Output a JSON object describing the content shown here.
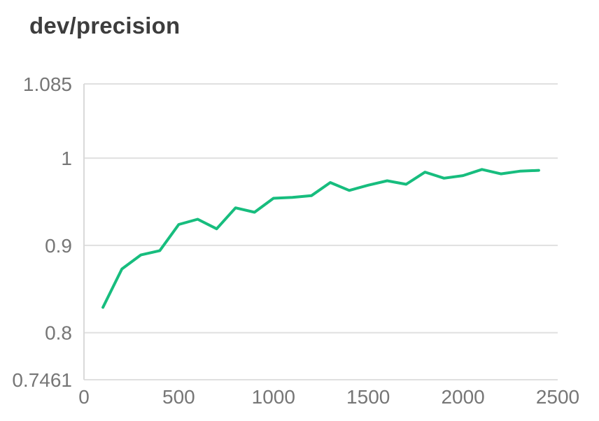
{
  "header": {
    "title": "dev/precision"
  },
  "chart_data": {
    "type": "line",
    "title": "dev/precision",
    "xlabel": "",
    "ylabel": "",
    "xlim": [
      0,
      2500
    ],
    "ylim": [
      0.7461,
      1.085
    ],
    "x_ticks": [
      {
        "label": "0",
        "value": 0
      },
      {
        "label": "500",
        "value": 500
      },
      {
        "label": "1000",
        "value": 1000
      },
      {
        "label": "1500",
        "value": 1500
      },
      {
        "label": "2000",
        "value": 2000
      },
      {
        "label": "2500",
        "value": 2500
      }
    ],
    "y_ticks": [
      {
        "label": "1.085",
        "value": 1.085
      },
      {
        "label": "1",
        "value": 1.0
      },
      {
        "label": "0.9",
        "value": 0.9
      },
      {
        "label": "0.8",
        "value": 0.8
      },
      {
        "label": "0.7461",
        "value": 0.7461
      }
    ],
    "grid": "horizontal",
    "legend": "none",
    "series": [
      {
        "name": "dev/precision",
        "x": [
          100,
          200,
          300,
          400,
          500,
          600,
          700,
          800,
          900,
          1000,
          1100,
          1200,
          1300,
          1400,
          1500,
          1600,
          1700,
          1800,
          1900,
          2000,
          2100,
          2200,
          2300,
          2400
        ],
        "values": [
          0.829,
          0.873,
          0.889,
          0.894,
          0.924,
          0.93,
          0.919,
          0.943,
          0.938,
          0.954,
          0.955,
          0.957,
          0.972,
          0.963,
          0.969,
          0.974,
          0.97,
          0.984,
          0.977,
          0.98,
          0.987,
          0.982,
          0.985,
          0.986
        ]
      }
    ],
    "colors": {
      "line": "#17bd7e",
      "grid": "#e0e0e0",
      "axis": "#d9d9d9",
      "tick_label": "#767676",
      "title": "#3d3d3d",
      "background": "#ffffff"
    }
  }
}
